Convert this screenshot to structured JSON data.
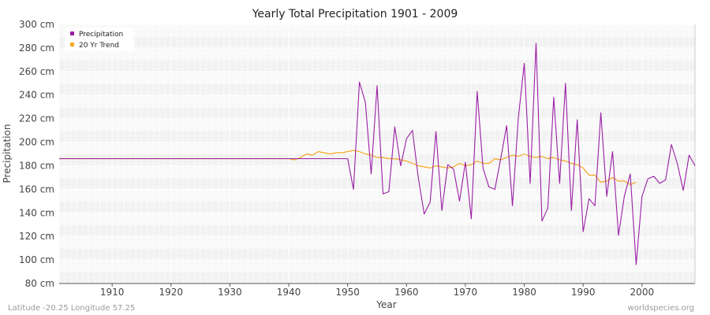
{
  "chart_data": {
    "type": "line",
    "title": "Yearly Total Precipitation 1901 - 2009",
    "xlabel": "Year",
    "ylabel": "Precipitation",
    "xlim": [
      1901,
      2009
    ],
    "ylim": [
      80,
      300
    ],
    "x_ticks": [
      1910,
      1920,
      1930,
      1940,
      1950,
      1960,
      1970,
      1980,
      1990,
      2000
    ],
    "y_ticks": [
      "80 cm",
      "100 cm",
      "120 cm",
      "140 cm",
      "160 cm",
      "180 cm",
      "200 cm",
      "220 cm",
      "240 cm",
      "260 cm",
      "280 cm",
      "300 cm"
    ],
    "y_tick_values": [
      80,
      100,
      120,
      140,
      160,
      180,
      200,
      220,
      240,
      260,
      280,
      300
    ],
    "grid": true,
    "legend_position": "top-left",
    "series": [
      {
        "name": "Precipitation",
        "color": "#9b1fa5",
        "x": [
          1901,
          1902,
          1903,
          1904,
          1905,
          1906,
          1907,
          1908,
          1909,
          1910,
          1911,
          1912,
          1913,
          1914,
          1915,
          1916,
          1917,
          1918,
          1919,
          1920,
          1921,
          1922,
          1923,
          1924,
          1925,
          1926,
          1927,
          1928,
          1929,
          1930,
          1931,
          1932,
          1933,
          1934,
          1935,
          1936,
          1937,
          1938,
          1939,
          1940,
          1941,
          1942,
          1943,
          1944,
          1945,
          1946,
          1947,
          1948,
          1949,
          1950,
          1951,
          1952,
          1953,
          1954,
          1955,
          1956,
          1957,
          1958,
          1959,
          1960,
          1961,
          1962,
          1963,
          1964,
          1965,
          1966,
          1967,
          1968,
          1969,
          1970,
          1971,
          1972,
          1973,
          1974,
          1975,
          1976,
          1977,
          1978,
          1979,
          1980,
          1981,
          1982,
          1983,
          1984,
          1985,
          1986,
          1987,
          1988,
          1989,
          1990,
          1991,
          1992,
          1993,
          1994,
          1995,
          1996,
          1997,
          1998,
          1999,
          2000,
          2001,
          2002,
          2003,
          2004,
          2005,
          2006,
          2007,
          2008,
          2009
        ],
        "values": [
          186,
          186,
          186,
          186,
          186,
          186,
          186,
          186,
          186,
          186,
          186,
          186,
          186,
          186,
          186,
          186,
          186,
          186,
          186,
          186,
          186,
          186,
          186,
          186,
          186,
          186,
          186,
          186,
          186,
          186,
          186,
          186,
          186,
          186,
          186,
          186,
          186,
          186,
          186,
          186,
          186,
          186,
          186,
          186,
          186,
          186,
          186,
          186,
          186,
          186,
          160,
          251,
          234,
          173,
          248,
          156,
          158,
          213,
          180,
          203,
          210,
          170,
          139,
          149,
          209,
          142,
          181,
          177,
          150,
          183,
          135,
          243,
          178,
          162,
          160,
          186,
          214,
          146,
          221,
          267,
          165,
          284,
          133,
          144,
          238,
          165,
          250,
          142,
          219,
          124,
          152,
          146,
          225,
          154,
          192,
          121,
          154,
          173,
          96,
          154,
          169,
          171,
          165,
          168,
          198,
          182,
          159,
          189,
          180
        ]
      },
      {
        "name": "20 Yr Trend",
        "color": "#f5a623",
        "x": [
          1901,
          1902,
          1903,
          1904,
          1905,
          1906,
          1907,
          1908,
          1909,
          1910,
          1911,
          1912,
          1913,
          1914,
          1915,
          1916,
          1917,
          1918,
          1919,
          1920,
          1921,
          1922,
          1923,
          1924,
          1925,
          1926,
          1927,
          1928,
          1929,
          1930,
          1931,
          1932,
          1933,
          1934,
          1935,
          1936,
          1937,
          1938,
          1939,
          1940,
          1941,
          1942,
          1943,
          1944,
          1945,
          1946,
          1947,
          1948,
          1949,
          1950,
          1951,
          1952,
          1953,
          1954,
          1955,
          1956,
          1957,
          1958,
          1959,
          1960,
          1961,
          1962,
          1963,
          1964,
          1965,
          1966,
          1967,
          1968,
          1969,
          1970,
          1971,
          1972,
          1973,
          1974,
          1975,
          1976,
          1977,
          1978,
          1979,
          1980,
          1981,
          1982,
          1983,
          1984,
          1985,
          1986,
          1987,
          1988,
          1989,
          1990,
          1991,
          1992,
          1993,
          1994,
          1995,
          1996,
          1997,
          1998,
          1999
        ],
        "values": [
          186,
          186,
          186,
          186,
          186,
          186,
          186,
          186,
          186,
          186,
          186,
          186,
          186,
          186,
          186,
          186,
          186,
          186,
          186,
          186,
          186,
          186,
          186,
          186,
          186,
          186,
          186,
          186,
          186,
          186,
          186,
          186,
          186,
          186,
          186,
          186,
          186,
          186,
          186,
          186,
          185,
          187,
          190,
          189,
          192,
          191,
          190,
          191,
          191,
          192,
          193,
          192,
          190,
          189,
          187,
          187,
          186,
          186,
          185,
          184,
          182,
          180,
          179,
          178,
          180,
          179,
          178,
          179,
          182,
          180,
          181,
          184,
          182,
          182,
          186,
          185,
          187,
          189,
          188,
          190,
          188,
          187,
          188,
          186,
          187,
          185,
          184,
          182,
          181,
          178,
          172,
          172,
          166,
          167,
          170,
          167,
          167,
          164,
          166
        ]
      }
    ]
  },
  "footer": {
    "left": "Latitude -20.25 Longitude 57.25",
    "right": "worldspecies.org"
  }
}
